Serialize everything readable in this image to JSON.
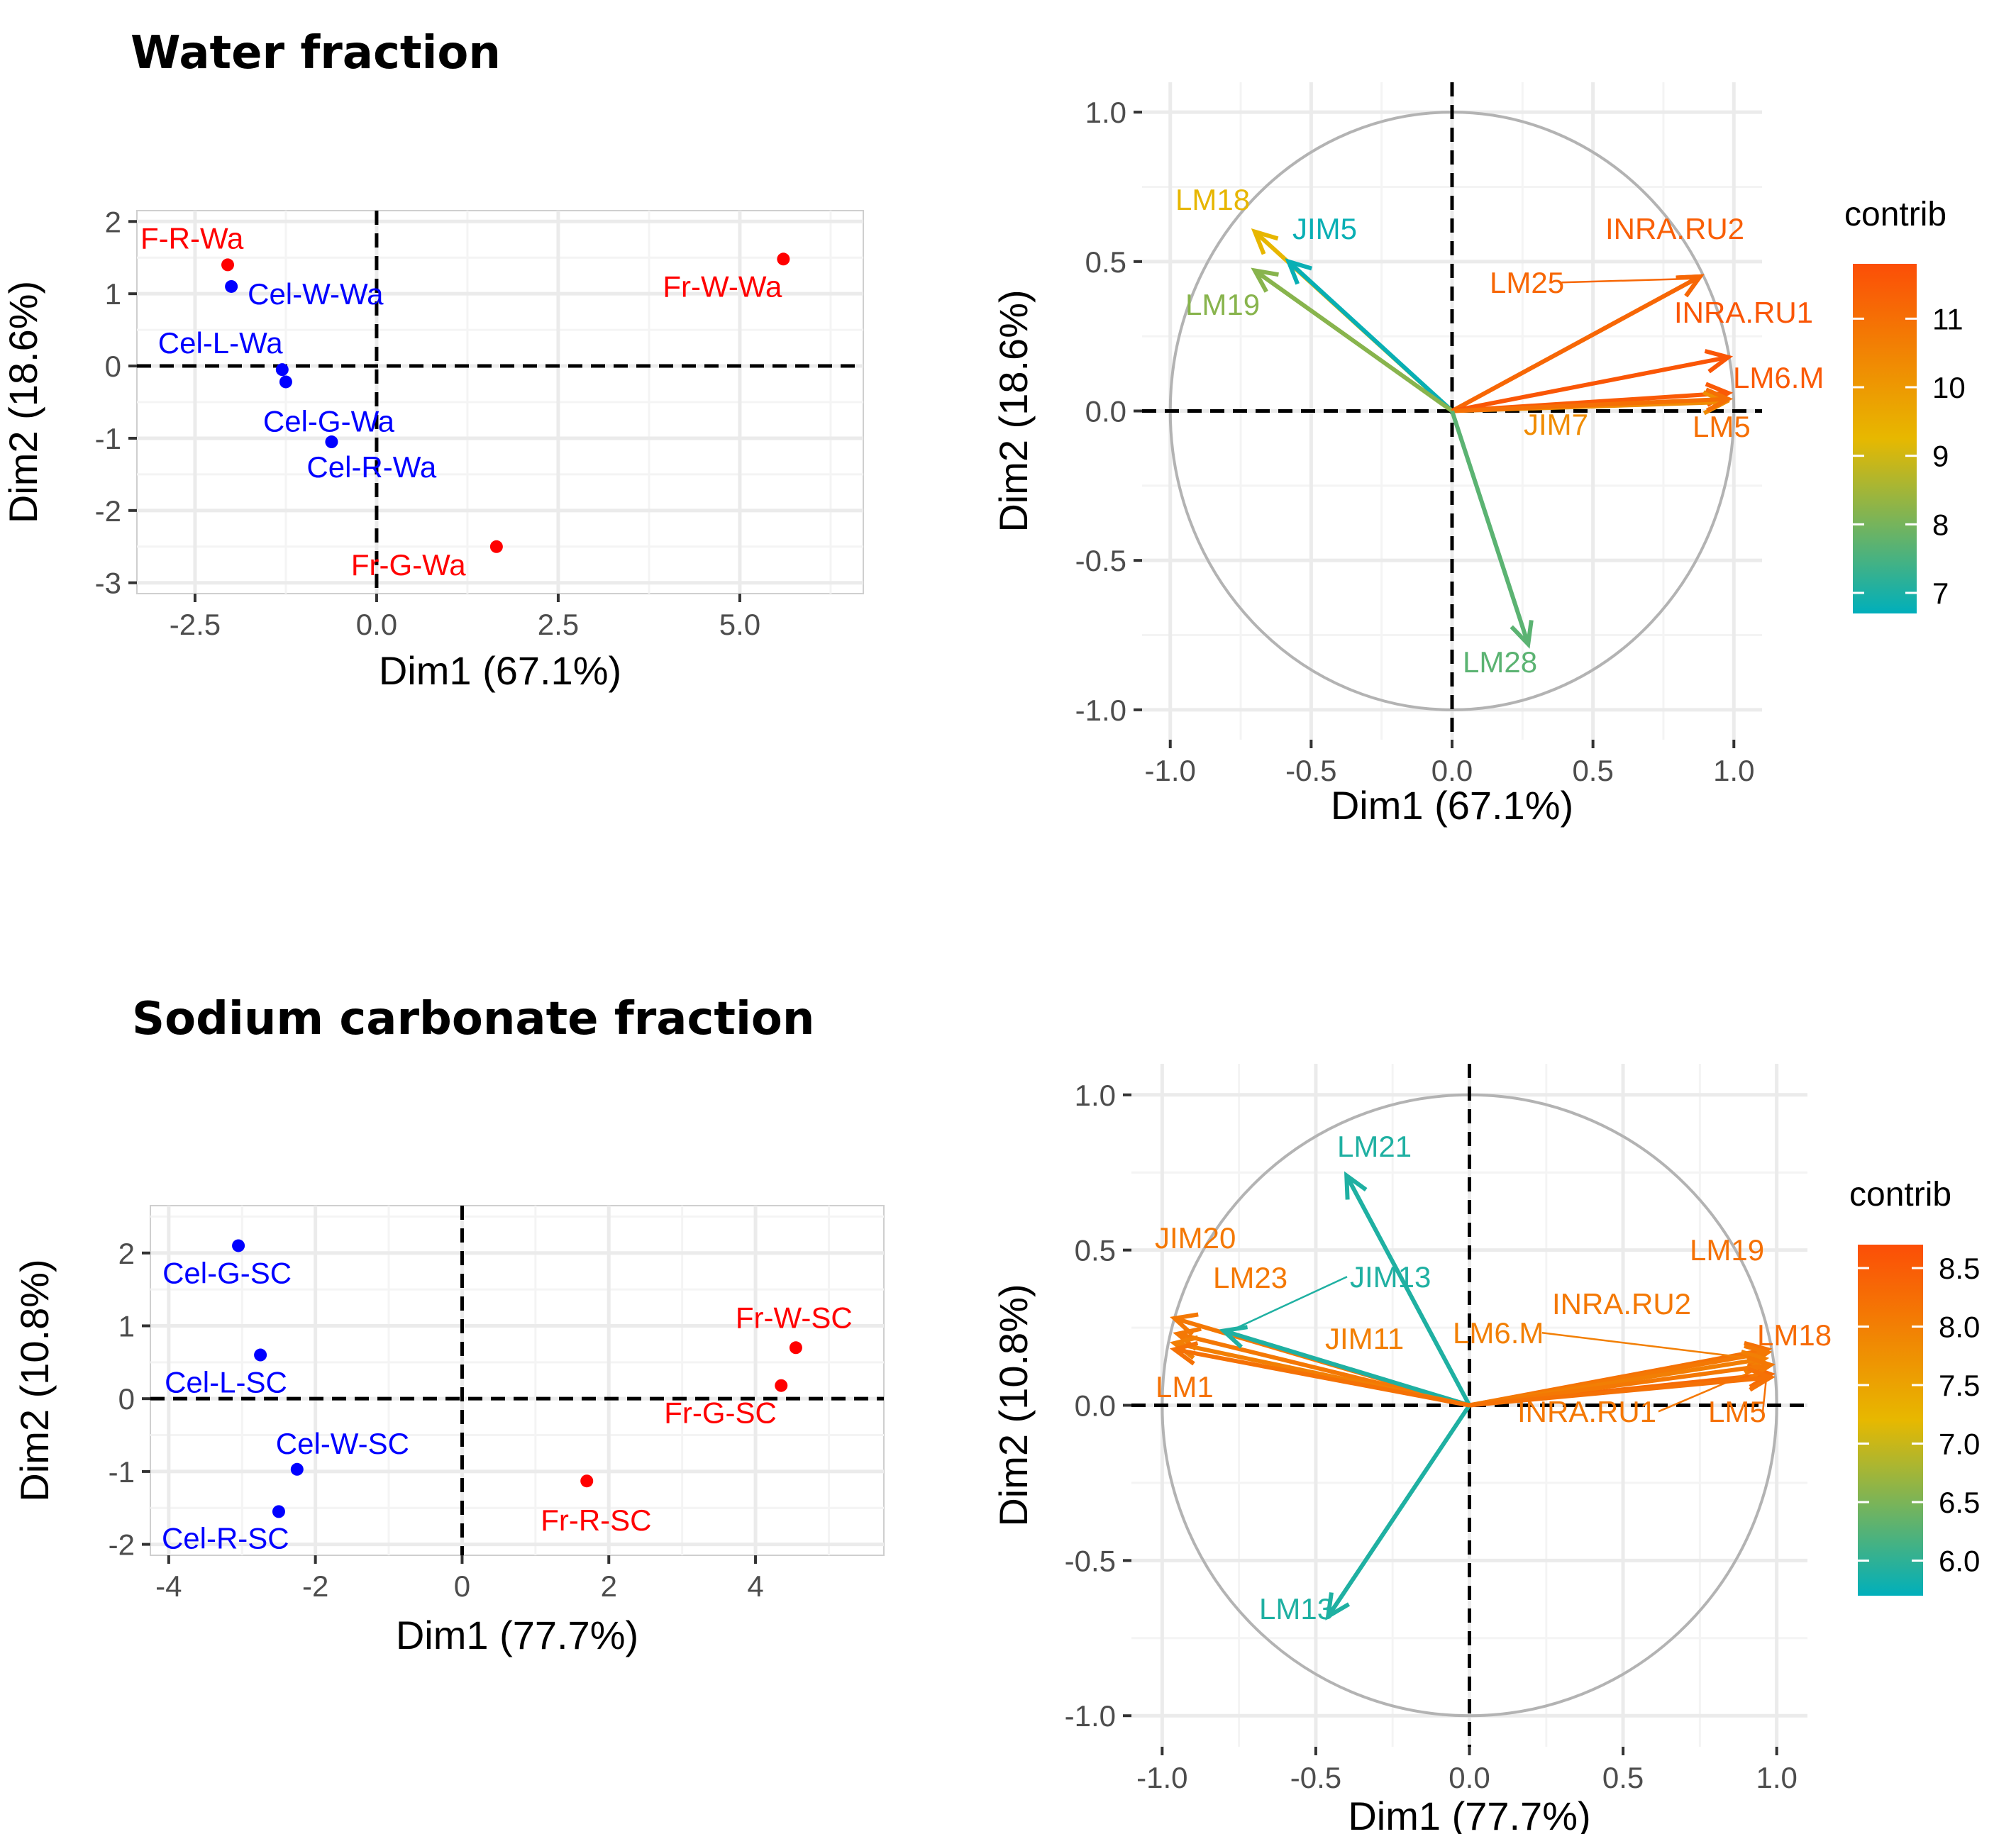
{
  "titles": {
    "water": "Water fraction",
    "sodium": "Sodium carbonate fraction"
  },
  "colors": {
    "wall_fraction": "#ff0000",
    "cell_wall": "#0000ff",
    "circle": "#b3b3b3",
    "grid": "#ebebeb",
    "grid_minor": "#f4f4f4",
    "gradient": [
      "#00afbb",
      "#e7b800",
      "#fc4e07"
    ]
  },
  "chart_data": [
    {
      "id": "water-ind",
      "type": "scatter",
      "xlabel": "Dim1 (67.1%)",
      "ylabel": "Dim2 (18.6%)",
      "xlim": [
        -3.3,
        6.7
      ],
      "ylim": [
        -3.15,
        2.15
      ],
      "xticks": [
        -2.5,
        0.0,
        2.5,
        5.0
      ],
      "xtick_labels": [
        "-2.5",
        "0.0",
        "2.5",
        "5.0"
      ],
      "yticks": [
        -3,
        -2,
        -1,
        0,
        1,
        2
      ],
      "ytick_labels": [
        "-3",
        "-2",
        "-1",
        "0",
        "1",
        "2"
      ],
      "points": [
        {
          "label": "F-R-Wa",
          "x": -2.05,
          "y": 1.4,
          "group": "wall_fraction"
        },
        {
          "label": "Cel-W-Wa",
          "x": -2.0,
          "y": 1.1,
          "group": "cell_wall"
        },
        {
          "label": "Cel-L-Wa",
          "x": -1.3,
          "y": -0.05,
          "group": "cell_wall"
        },
        {
          "label": "Cel-G-Wa",
          "x": -1.25,
          "y": -0.22,
          "group": "cell_wall"
        },
        {
          "label": "Cel-R-Wa",
          "x": -0.62,
          "y": -1.05,
          "group": "cell_wall"
        },
        {
          "label": "Fr-G-Wa",
          "x": 1.65,
          "y": -2.5,
          "group": "wall_fraction"
        },
        {
          "label": "Fr-W-Wa",
          "x": 5.6,
          "y": 1.48,
          "group": "wall_fraction"
        }
      ]
    },
    {
      "id": "water-var",
      "type": "biplot",
      "xlabel": "Dim1 (67.1%)",
      "ylabel": "Dim2 (18.6%)",
      "xlim": [
        -1.1,
        1.1
      ],
      "ylim": [
        -1.1,
        1.1
      ],
      "ticks": [
        -1.0,
        -0.5,
        0.0,
        0.5,
        1.0
      ],
      "tick_labels": [
        "-1.0",
        "-0.5",
        "0.0",
        "0.5",
        "1.0"
      ],
      "legend": {
        "title": "contrib",
        "range": [
          6.7,
          11.8
        ],
        "ticks": [
          7,
          8,
          9,
          10,
          11
        ],
        "tick_labels": [
          "7",
          "8",
          "9",
          "10",
          "11"
        ]
      },
      "vectors": [
        {
          "label": "LM18",
          "x": -0.7,
          "y": 0.6,
          "contrib": 9.3
        },
        {
          "label": "JIM5",
          "x": -0.58,
          "y": 0.5,
          "contrib": 6.8
        },
        {
          "label": "LM19",
          "x": -0.7,
          "y": 0.47,
          "contrib": 8.2
        },
        {
          "label": "INRA.RU2",
          "x": 0.88,
          "y": 0.45,
          "contrib": 11.4
        },
        {
          "label": "LM25",
          "x": 0.88,
          "y": 0.45,
          "contrib": 11.2
        },
        {
          "label": "INRA.RU1",
          "x": 0.98,
          "y": 0.18,
          "contrib": 11.6
        },
        {
          "label": "LM6.M",
          "x": 0.98,
          "y": 0.06,
          "contrib": 11.5
        },
        {
          "label": "JIM7",
          "x": 0.97,
          "y": 0.03,
          "contrib": 10.3
        },
        {
          "label": "LM5",
          "x": 0.98,
          "y": 0.04,
          "contrib": 11.0
        },
        {
          "label": "LM28",
          "x": 0.27,
          "y": -0.78,
          "contrib": 7.7
        }
      ]
    },
    {
      "id": "sodium-ind",
      "type": "scatter",
      "xlabel": "Dim1 (77.7%)",
      "ylabel": "Dim2 (10.8%)",
      "xlim": [
        -4.25,
        5.75
      ],
      "ylim": [
        -2.15,
        2.65
      ],
      "xticks": [
        -4,
        -2,
        0,
        2,
        4
      ],
      "xtick_labels": [
        "-4",
        "-2",
        "0",
        "2",
        "4"
      ],
      "yticks": [
        -2,
        -1,
        0,
        1,
        2
      ],
      "ytick_labels": [
        "-2",
        "-1",
        "0",
        "1",
        "2"
      ],
      "points": [
        {
          "label": "Cel-G-SC",
          "x": -3.05,
          "y": 2.1,
          "group": "cell_wall"
        },
        {
          "label": "Cel-L-SC",
          "x": -2.75,
          "y": 0.6,
          "group": "cell_wall"
        },
        {
          "label": "Cel-W-SC",
          "x": -2.25,
          "y": -0.97,
          "group": "cell_wall"
        },
        {
          "label": "Cel-R-SC",
          "x": -2.5,
          "y": -1.55,
          "group": "cell_wall"
        },
        {
          "label": "Fr-W-SC",
          "x": 4.55,
          "y": 0.7,
          "group": "wall_fraction"
        },
        {
          "label": "Fr-G-SC",
          "x": 4.35,
          "y": 0.18,
          "group": "wall_fraction"
        },
        {
          "label": "Fr-R-SC",
          "x": 1.7,
          "y": -1.13,
          "group": "wall_fraction"
        }
      ]
    },
    {
      "id": "sodium-var",
      "type": "biplot",
      "xlabel": "Dim1 (77.7%)",
      "ylabel": "Dim2 (10.8%)",
      "xlim": [
        -1.1,
        1.1
      ],
      "ylim": [
        -1.1,
        1.1
      ],
      "ticks": [
        -1.0,
        -0.5,
        0.0,
        0.5,
        1.0
      ],
      "tick_labels": [
        "-1.0",
        "-0.5",
        "0.0",
        "0.5",
        "1.0"
      ],
      "legend": {
        "title": "contrib",
        "range": [
          5.7,
          8.7
        ],
        "ticks": [
          6.0,
          6.5,
          7.0,
          7.5,
          8.0,
          8.5
        ],
        "tick_labels": [
          "6.0",
          "6.5",
          "7.0",
          "7.5",
          "8.0",
          "8.5"
        ]
      },
      "vectors": [
        {
          "label": "LM21",
          "x": -0.4,
          "y": 0.74,
          "contrib": 5.9
        },
        {
          "label": "LM13",
          "x": -0.46,
          "y": -0.68,
          "contrib": 5.9
        },
        {
          "label": "JIM20",
          "x": -0.96,
          "y": 0.28,
          "contrib": 8.1
        },
        {
          "label": "LM23",
          "x": -0.95,
          "y": 0.23,
          "contrib": 8.1
        },
        {
          "label": "JIM13",
          "x": -0.8,
          "y": 0.24,
          "contrib": 5.9
        },
        {
          "label": "JIM11",
          "x": -0.96,
          "y": 0.2,
          "contrib": 8.0
        },
        {
          "label": "LM1",
          "x": -0.96,
          "y": 0.18,
          "contrib": 8.2
        },
        {
          "label": "LM19",
          "x": 0.97,
          "y": 0.18,
          "contrib": 8.2
        },
        {
          "label": "INRA.RU2",
          "x": 0.97,
          "y": 0.17,
          "contrib": 8.1
        },
        {
          "label": "LM6.M",
          "x": 0.96,
          "y": 0.15,
          "contrib": 8.0
        },
        {
          "label": "LM18",
          "x": 0.98,
          "y": 0.1,
          "contrib": 8.3
        },
        {
          "label": "INRA.RU1",
          "x": 0.98,
          "y": 0.13,
          "contrib": 8.1
        },
        {
          "label": "LM5",
          "x": 0.98,
          "y": 0.09,
          "contrib": 8.2
        }
      ]
    }
  ]
}
